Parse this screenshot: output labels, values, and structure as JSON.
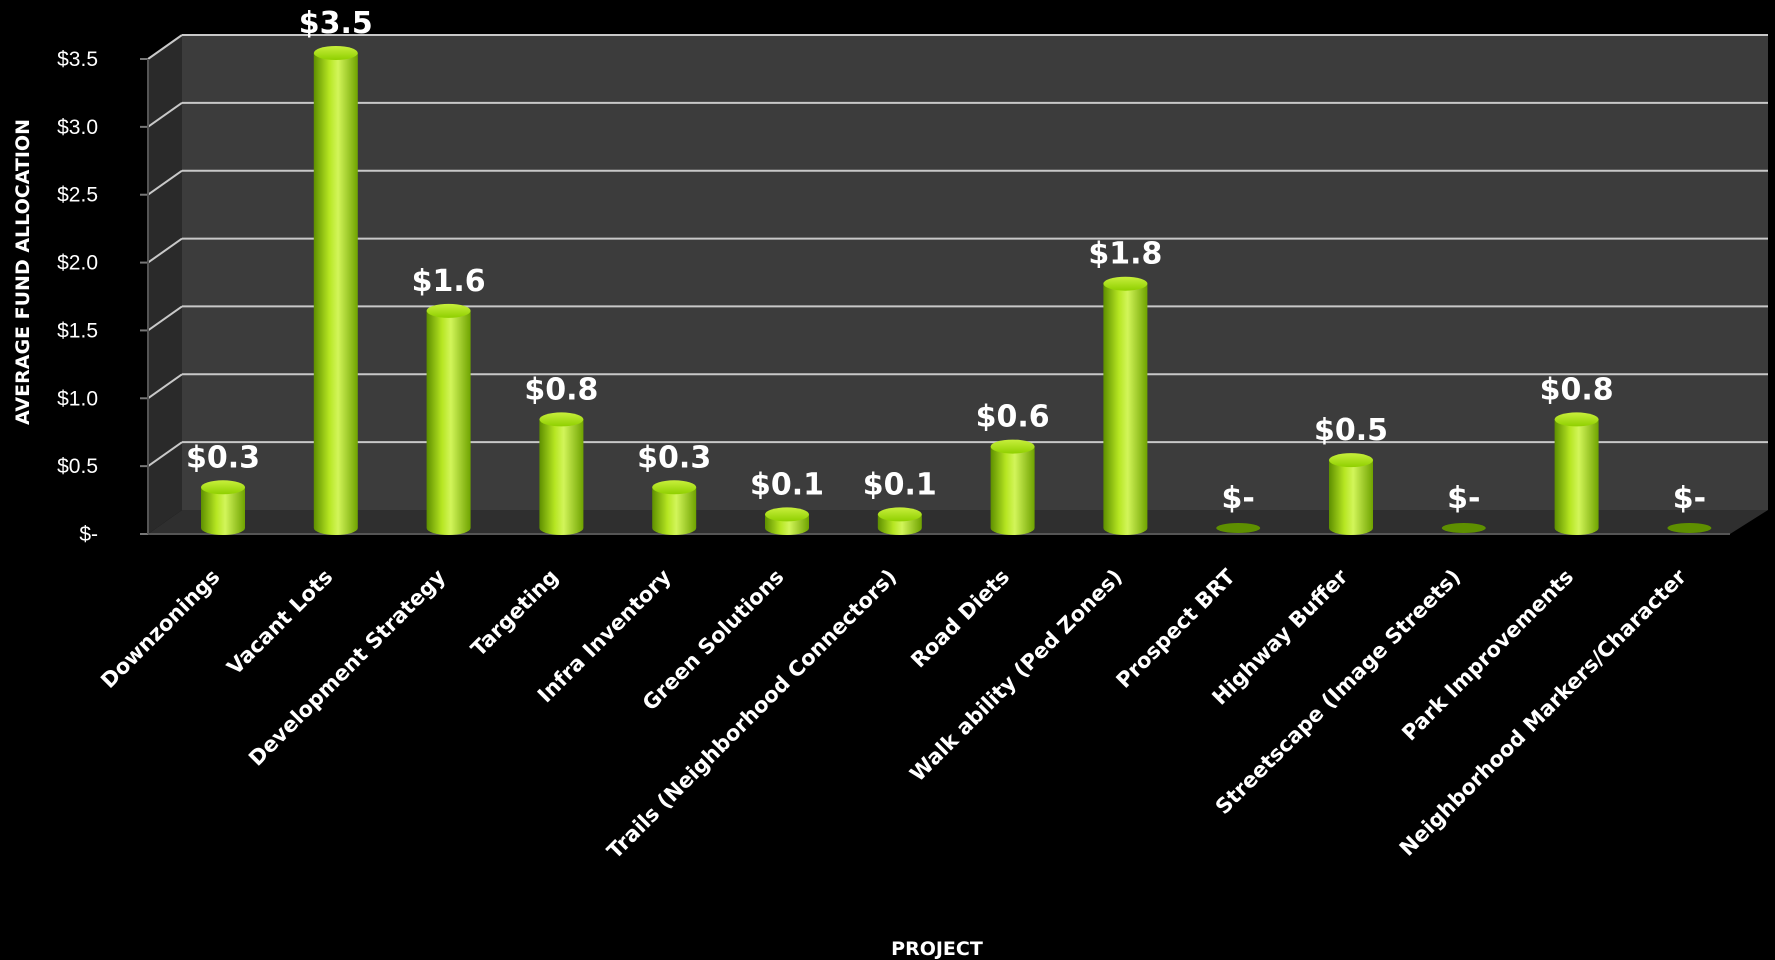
{
  "chart_data": {
    "type": "bar",
    "title": "",
    "xlabel": "PROJECT",
    "ylabel": "AVERAGE FUND ALLOCATION",
    "ylim": [
      0,
      3.5
    ],
    "yticks": [
      0,
      0.5,
      1.0,
      1.5,
      2.0,
      2.5,
      3.0,
      3.5
    ],
    "ytick_labels": [
      "$-",
      "$0.5",
      "$1.0",
      "$1.5",
      "$2.0",
      "$2.5",
      "$3.0",
      "$3.5"
    ],
    "categories": [
      "Downzonings",
      "Vacant Lots",
      "Development Strategy",
      "Targeting",
      "Infra Inventory",
      "Green Solutions",
      "Trails (Neighborhood Connectors)",
      "Road Diets",
      "Walk ability (Ped Zones)",
      "Prospect BRT",
      "Highway Buffer",
      "Streetscape (Image Streets)",
      "Park Improvements",
      "Neighborhood Markers/Character"
    ],
    "values": [
      0.3,
      3.5,
      1.6,
      0.8,
      0.3,
      0.1,
      0.1,
      0.6,
      1.8,
      0,
      0.5,
      0,
      0.8,
      0
    ],
    "data_labels": [
      "$0.3",
      "$3.5",
      "$1.6",
      "$0.8",
      "$0.3",
      "$0.1",
      "$0.1",
      "$0.6",
      "$1.8",
      "$-",
      "$0.5",
      "$-",
      "$0.8",
      "$-"
    ],
    "grid": true,
    "legend": "none",
    "colors": {
      "bar": "#8fcf00",
      "bar_highlight": "#d2f55a",
      "bar_shadow": "#5e8f00",
      "plot_back": "#3c3c3c",
      "plot_side": "#2a2a2a",
      "floor": "#2f2f2f",
      "grid": "#c8c8c8",
      "background": "#000000",
      "text": "#ffffff"
    }
  }
}
